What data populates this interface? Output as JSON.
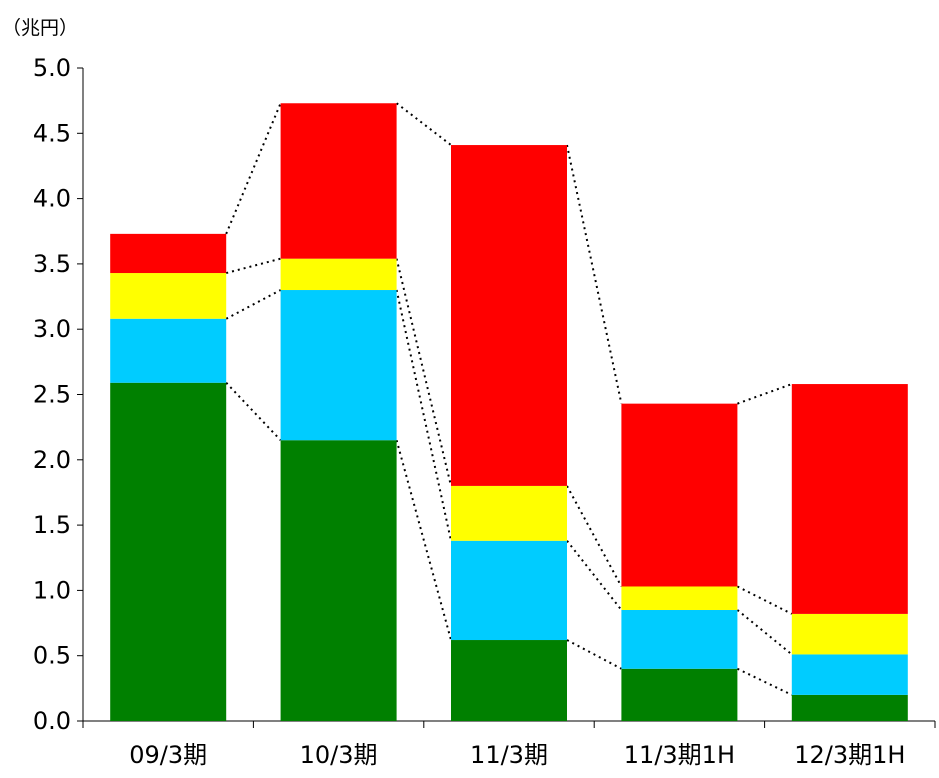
{
  "chart_data": {
    "type": "bar",
    "stacked": true,
    "unit_label": "（兆円）",
    "categories": [
      "09/3期",
      "10/3期",
      "11/3期",
      "11/3期1H",
      "12/3期1H"
    ],
    "series": [
      {
        "color": "#008000",
        "values": [
          2.59,
          2.15,
          0.62,
          0.4,
          0.2
        ]
      },
      {
        "color": "#00CCFF",
        "values": [
          0.49,
          1.15,
          0.76,
          0.45,
          0.31
        ]
      },
      {
        "color": "#FFFF00",
        "values": [
          0.35,
          0.24,
          0.42,
          0.18,
          0.31
        ]
      },
      {
        "color": "#FF0000",
        "values": [
          0.3,
          1.19,
          2.61,
          1.4,
          1.76
        ]
      }
    ],
    "ylim": [
      0,
      5.0
    ],
    "yticks": [
      "0.0",
      "0.5",
      "1.0",
      "1.5",
      "2.0",
      "2.5",
      "3.0",
      "3.5",
      "4.0",
      "4.5",
      "5.0"
    ],
    "grid": false,
    "legend": "none",
    "connector_lines": "dotted"
  }
}
